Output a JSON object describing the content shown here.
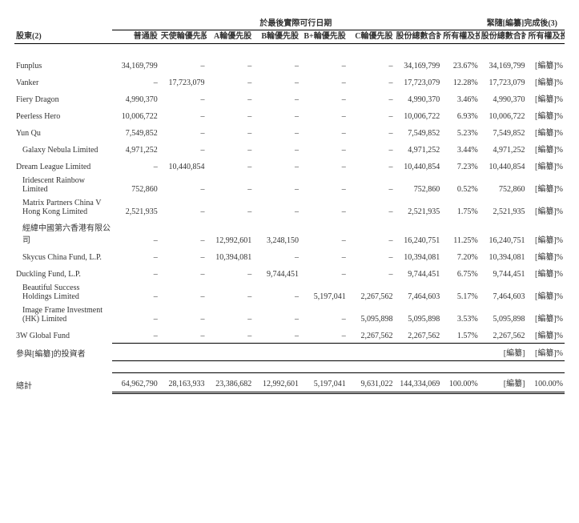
{
  "headers": {
    "section1": "於最後實際可行日期",
    "section2": "緊隨[編纂]完成後(3)",
    "name_col": "股東(2)",
    "ordinary": "普通股",
    "angel": "天使輪優先股",
    "seriesA": "A輪優先股",
    "seriesB": "B輪優先股",
    "seriesBplus": "B+輪優先股",
    "seriesC": "C輪優先股",
    "total_shares": "股份總數合計",
    "pct1": "所有權及投票權百分比合計(%)",
    "total_shares2": "股份總數合計",
    "pct2": "所有權及投票權百分比合計"
  },
  "rows": [
    {
      "name": "Funplus",
      "ord": "34,169,799",
      "angel": "–",
      "a": "–",
      "b": "–",
      "bp": "–",
      "c": "–",
      "tot": "34,169,799",
      "pct": "23.67%",
      "tot2": "34,169,799",
      "pct2": "[編纂]%"
    },
    {
      "name": "Vanker",
      "ord": "–",
      "angel": "17,723,079",
      "a": "–",
      "b": "–",
      "bp": "–",
      "c": "–",
      "tot": "17,723,079",
      "pct": "12.28%",
      "tot2": "17,723,079",
      "pct2": "[編纂]%"
    },
    {
      "name": "Fiery Dragon",
      "ord": "4,990,370",
      "angel": "–",
      "a": "–",
      "b": "–",
      "bp": "–",
      "c": "–",
      "tot": "4,990,370",
      "pct": "3.46%",
      "tot2": "4,990,370",
      "pct2": "[編纂]%"
    },
    {
      "name": "Peerless Hero",
      "ord": "10,006,722",
      "angel": "–",
      "a": "–",
      "b": "–",
      "bp": "–",
      "c": "–",
      "tot": "10,006,722",
      "pct": "6.93%",
      "tot2": "10,006,722",
      "pct2": "[編纂]%"
    },
    {
      "name": "Yun Qu",
      "ord": "7,549,852",
      "angel": "–",
      "a": "–",
      "b": "–",
      "bp": "–",
      "c": "–",
      "tot": "7,549,852",
      "pct": "5.23%",
      "tot2": "7,549,852",
      "pct2": "[編纂]%"
    },
    {
      "name": "Galaxy Nebula Limited",
      "indent": true,
      "ord": "4,971,252",
      "angel": "–",
      "a": "–",
      "b": "–",
      "bp": "–",
      "c": "–",
      "tot": "4,971,252",
      "pct": "3.44%",
      "tot2": "4,971,252",
      "pct2": "[編纂]%"
    },
    {
      "name": "Dream League Limited",
      "ord": "–",
      "angel": "10,440,854",
      "a": "–",
      "b": "–",
      "bp": "–",
      "c": "–",
      "tot": "10,440,854",
      "pct": "7.23%",
      "tot2": "10,440,854",
      "pct2": "[編纂]%"
    },
    {
      "name": "Iridescent Rainbow Limited",
      "indent": true,
      "ord": "752,860",
      "angel": "–",
      "a": "–",
      "b": "–",
      "bp": "–",
      "c": "–",
      "tot": "752,860",
      "pct": "0.52%",
      "tot2": "752,860",
      "pct2": "[編纂]%"
    },
    {
      "name": "Matrix Partners China V Hong Kong Limited",
      "indent": true,
      "ord": "2,521,935",
      "angel": "–",
      "a": "–",
      "b": "–",
      "bp": "–",
      "c": "–",
      "tot": "2,521,935",
      "pct": "1.75%",
      "tot2": "2,521,935",
      "pct2": "[編纂]%"
    },
    {
      "name": "經緯中國第六香港有限公司",
      "indent": true,
      "ord": "–",
      "angel": "–",
      "a": "12,992,601",
      "b": "3,248,150",
      "bp": "–",
      "c": "–",
      "tot": "16,240,751",
      "pct": "11.25%",
      "tot2": "16,240,751",
      "pct2": "[編纂]%"
    },
    {
      "name": "Skycus China Fund, L.P.",
      "indent": true,
      "ord": "–",
      "angel": "–",
      "a": "10,394,081",
      "b": "–",
      "bp": "–",
      "c": "–",
      "tot": "10,394,081",
      "pct": "7.20%",
      "tot2": "10,394,081",
      "pct2": "[編纂]%"
    },
    {
      "name": "Duckling Fund, L.P.",
      "ord": "–",
      "angel": "–",
      "a": "–",
      "b": "9,744,451",
      "bp": "–",
      "c": "–",
      "tot": "9,744,451",
      "pct": "6.75%",
      "tot2": "9,744,451",
      "pct2": "[編纂]%"
    },
    {
      "name": "Beautiful Success Holdings Limited",
      "indent": true,
      "ord": "–",
      "angel": "–",
      "a": "–",
      "b": "–",
      "bp": "5,197,041",
      "c": "2,267,562",
      "tot": "7,464,603",
      "pct": "5.17%",
      "tot2": "7,464,603",
      "pct2": "[編纂]%"
    },
    {
      "name": "Image Frame Investment (HK) Limited",
      "indent": true,
      "ord": "–",
      "angel": "–",
      "a": "–",
      "b": "–",
      "bp": "–",
      "c": "5,095,898",
      "tot": "5,095,898",
      "pct": "3.53%",
      "tot2": "5,095,898",
      "pct2": "[編纂]%"
    },
    {
      "name": "3W Global Fund",
      "ord": "–",
      "angel": "–",
      "a": "–",
      "b": "–",
      "bp": "–",
      "c": "2,267,562",
      "tot": "2,267,562",
      "pct": "1.57%",
      "tot2": "2,267,562",
      "pct2": "[編纂]%"
    }
  ],
  "participant": {
    "name": "參與[編纂]的投資者",
    "ord": "",
    "angel": "",
    "a": "",
    "b": "",
    "bp": "",
    "c": "",
    "tot": "",
    "pct": "",
    "tot2": "[編纂]",
    "pct2": "[編纂]%"
  },
  "total": {
    "name": "總計",
    "ord": "64,962,790",
    "angel": "28,163,933",
    "a": "23,386,682",
    "b": "12,992,601",
    "bp": "5,197,041",
    "c": "9,631,022",
    "tot": "144,334,069",
    "pct": "100.00%",
    "tot2": "[編纂]",
    "pct2": "100.00%"
  },
  "style": {
    "font_family": "Times New Roman / SimSun serif",
    "base_font_size_pt": 10,
    "text_color": "#333333",
    "background": "#ffffff",
    "border_color": "#000000"
  }
}
